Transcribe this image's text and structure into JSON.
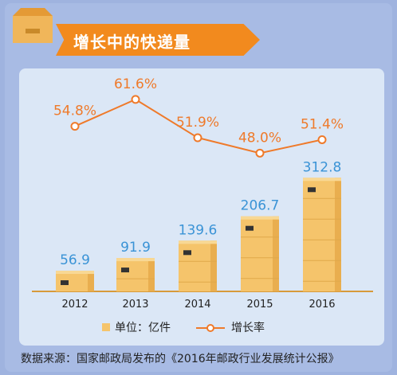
{
  "title": "增长中的快递量",
  "source": "数据来源：国家邮政局发布的《2016年邮政行业发展统计公报》",
  "colors": {
    "box_fill": "#f5c46b",
    "box_side": "#e9ae4f",
    "value_blue": "#3a93d6",
    "line_orange": "#ef7a2a",
    "banner_orange": "#f28a1e"
  },
  "chart_data": {
    "type": "bar",
    "categories": [
      "2012",
      "2013",
      "2014",
      "2015",
      "2016"
    ],
    "series": [
      {
        "name": "单位：亿件",
        "type": "bar",
        "values": [
          56.9,
          91.9,
          139.6,
          206.7,
          312.8
        ]
      },
      {
        "name": "增长率",
        "type": "line",
        "values": [
          54.8,
          61.6,
          51.9,
          48.0,
          51.4
        ],
        "labels": [
          "54.8%",
          "61.6%",
          "51.9%",
          "48.0%",
          "51.4%"
        ]
      }
    ],
    "bar_labels": [
      "56.9",
      "91.9",
      "139.6",
      "206.7",
      "312.8"
    ],
    "legend": [
      "单位：亿件",
      "增长率"
    ],
    "legend_position": "bottom",
    "ylim_bar": [
      0,
      320
    ],
    "ylim_line": [
      0,
      70
    ],
    "grid": false
  }
}
